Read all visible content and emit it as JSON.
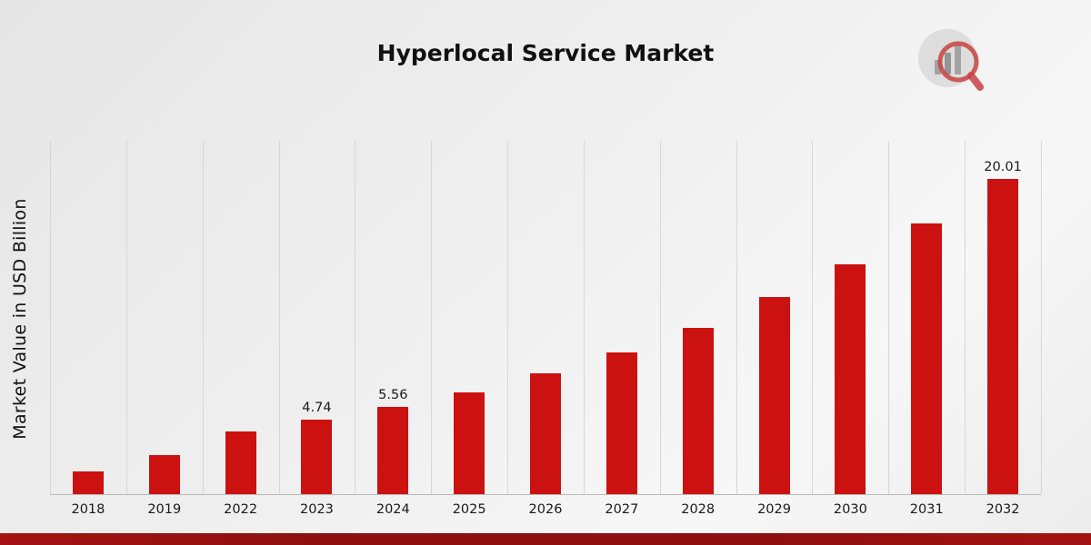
{
  "title": "Hyperlocal Service Market",
  "ylabel": "Market Value in USD Billion",
  "brand": {
    "logo_icon": "bar-chart-magnifier-logo"
  },
  "colors": {
    "bar": "#cc1111",
    "footer_strip": "#8e0f0f",
    "background": "#ededed",
    "gridline": "#d7d7d7",
    "text": "#111111"
  },
  "chart_data": {
    "type": "bar",
    "title": "Hyperlocal Service Market",
    "xlabel": "",
    "ylabel": "Market Value in USD Billion",
    "categories": [
      "2018",
      "2019",
      "2022",
      "2023",
      "2024",
      "2025",
      "2026",
      "2027",
      "2028",
      "2029",
      "2030",
      "2031",
      "2032"
    ],
    "values": [
      1.45,
      2.5,
      4.0,
      4.74,
      5.56,
      6.45,
      7.7,
      9.0,
      10.55,
      12.5,
      14.6,
      17.2,
      20.01
    ],
    "data_labels": [
      null,
      null,
      null,
      "4.74",
      "5.56",
      null,
      null,
      null,
      null,
      null,
      null,
      null,
      "20.01"
    ],
    "ylim": [
      0,
      22.5
    ],
    "grid": "vertical-only",
    "legend_position": "none",
    "bar_color": "#cc1111"
  }
}
